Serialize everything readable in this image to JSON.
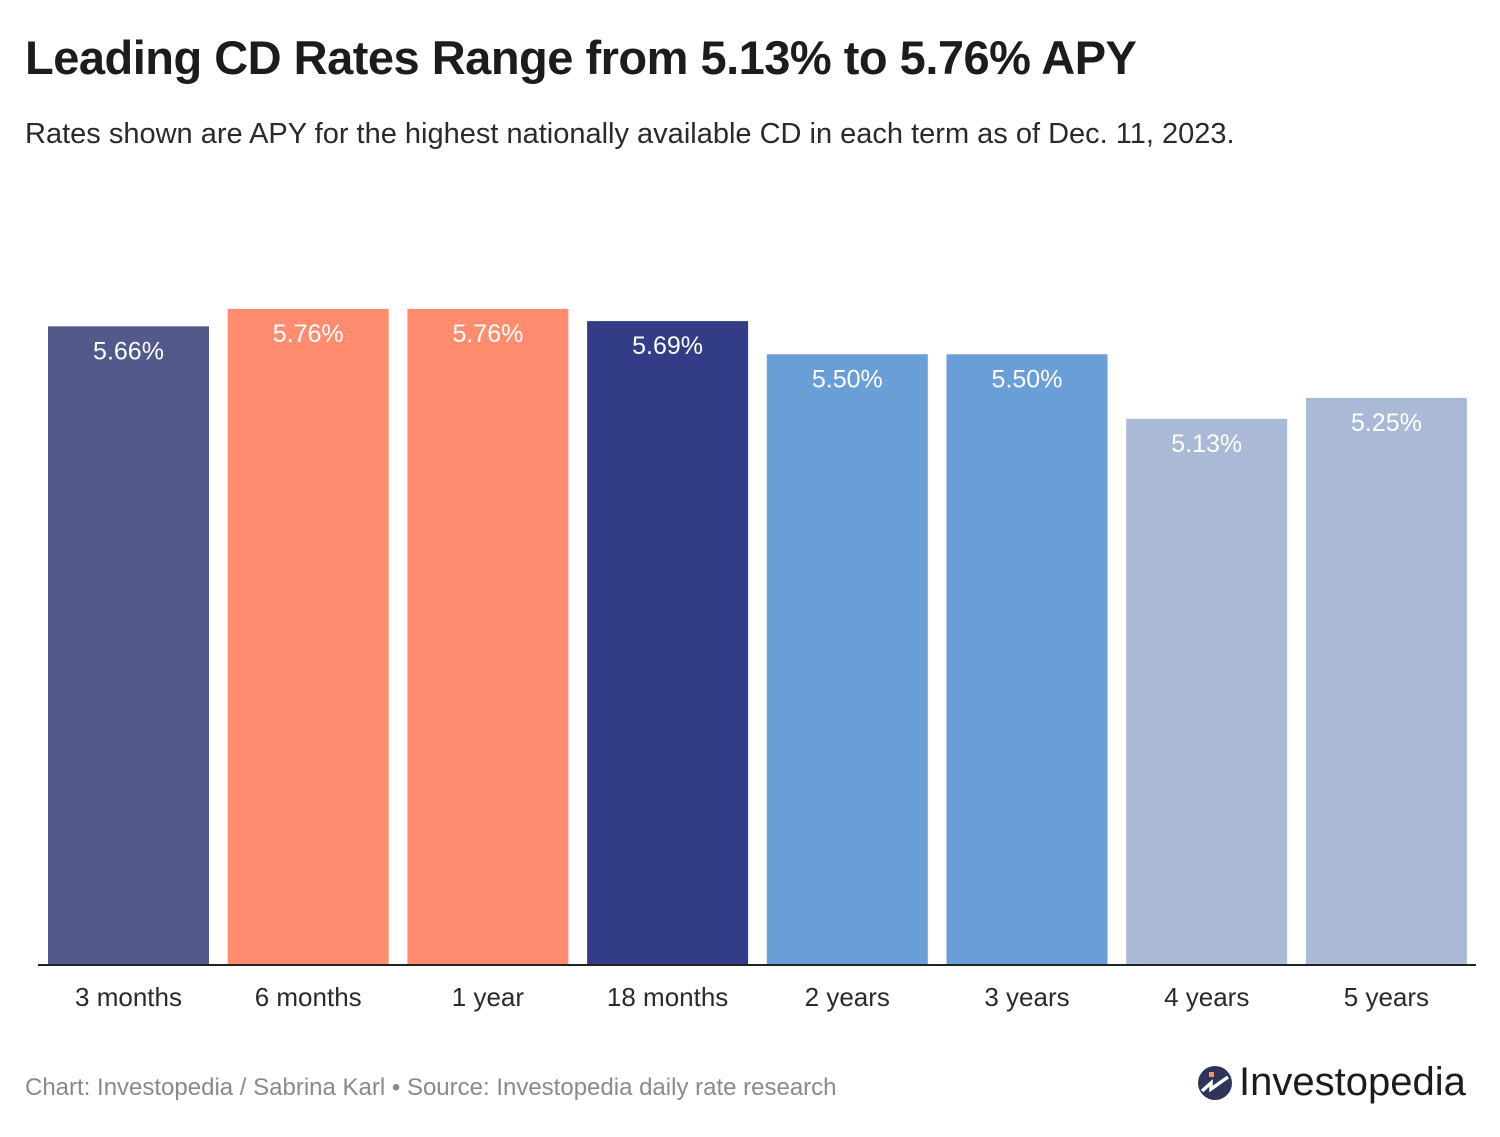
{
  "title": "Leading CD Rates Range from 5.13% to 5.76% APY",
  "subtitle": "Rates shown are APY for the highest nationally available CD in each term as of Dec. 11, 2023.",
  "footer": "Chart: Investopedia / Sabrina Karl • Source: Investopedia daily rate research",
  "logo": {
    "text": "Investopedia",
    "icon": "investopedia-logo-icon",
    "colors": [
      "#2e3558",
      "#ff8c6e"
    ]
  },
  "chart_data": {
    "type": "bar",
    "categories": [
      "3 months",
      "6 months",
      "1 year",
      "18 months",
      "2 years",
      "3 years",
      "4 years",
      "5 years"
    ],
    "values": [
      5.66,
      5.76,
      5.76,
      5.69,
      5.5,
      5.5,
      5.13,
      5.25
    ],
    "labels": [
      "5.66%",
      "5.76%",
      "5.76%",
      "5.69%",
      "5.50%",
      "5.50%",
      "5.13%",
      "5.25%"
    ],
    "colors": [
      "#525a8c",
      "#ff8c6e",
      "#ff8c6e",
      "#333d87",
      "#6a9ed6",
      "#6a9ed6",
      "#a9b9d6",
      "#a9b9d6"
    ],
    "xlabel": "",
    "ylabel": "",
    "ylim": [
      2,
      6
    ],
    "grid": false,
    "legend": "none"
  }
}
